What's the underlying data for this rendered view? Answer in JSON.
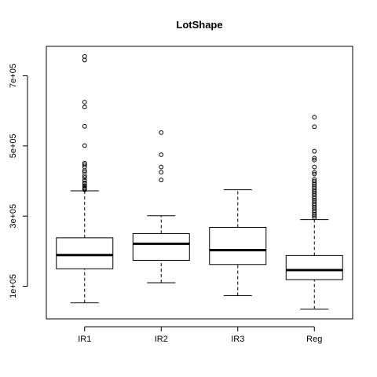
{
  "chart_data": {
    "type": "boxplot",
    "title": "LotShape",
    "xlabel": "",
    "ylabel": "",
    "categories": [
      "IR1",
      "IR2",
      "IR3",
      "Reg"
    ],
    "y_ticks": [
      100000,
      300000,
      500000,
      700000
    ],
    "y_tick_labels": [
      "1e+05",
      "3e+05",
      "5e+05",
      "7e+05"
    ],
    "ylim": [
      7000,
      784000
    ],
    "boxes": [
      {
        "category": "IR1",
        "whisker_low": 52500,
        "q1": 150000,
        "median": 189000,
        "q3": 238000,
        "whisker_high": 372000,
        "outliers": [
          755000,
          745000,
          625000,
          611000,
          556000,
          501000,
          451000,
          446000,
          440000,
          430000,
          425000,
          415000,
          410000,
          402000,
          395000,
          392000,
          387000,
          385000,
          380000,
          378000,
          375000
        ]
      },
      {
        "category": "IR2",
        "whisker_low": 110000,
        "q1": 174000,
        "median": 221000,
        "q3": 250000,
        "whisker_high": 301000,
        "outliers": [
          538000,
          475000,
          440000,
          425000,
          403000
        ]
      },
      {
        "category": "IR3",
        "whisker_low": 73000,
        "q1": 162000,
        "median": 203000,
        "q3": 268000,
        "whisker_high": 375000
      },
      {
        "category": "Reg",
        "whisker_low": 34900,
        "q1": 119000,
        "median": 146000,
        "q3": 187500,
        "whisker_high": 290000,
        "outliers": [
          582000,
          555000,
          485000,
          465000,
          460000,
          440000,
          425000,
          420000,
          405000,
          400000,
          395000,
          390000,
          385000,
          380000,
          375000,
          370000,
          365000,
          360000,
          355000,
          350000,
          345000,
          340000,
          335000,
          330000,
          325000,
          320000,
          315000,
          310000,
          305000,
          300000,
          295000
        ]
      }
    ],
    "grid": false,
    "legend": "none"
  }
}
